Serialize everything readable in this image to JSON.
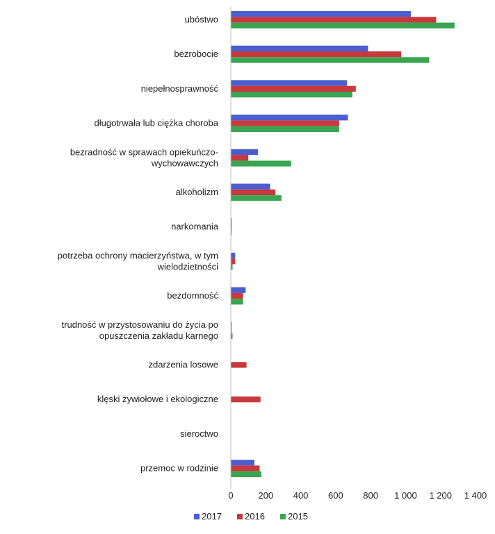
{
  "chart_data": {
    "type": "bar",
    "orientation": "horizontal",
    "categories": [
      "ubóstwo",
      "bezrobocie",
      "niepełnosprawność",
      "długotrwała lub ciężka choroba",
      "bezradność w sprawach opiekuńczo-wychowawczych",
      "alkoholizm",
      "narkomania",
      "potrzeba ochrony macierzyństwa, w tym wielodzietności",
      "bezdomność",
      "trudność w przystosowaniu do życia po opuszczenia zakładu karnego",
      "zdarzenia losowe",
      "klęski żywiołowe i ekologiczne",
      "sieroctwo",
      "przemoc w rodzinie"
    ],
    "category_lines": [
      [
        "ubóstwo"
      ],
      [
        "bezrobocie"
      ],
      [
        "niepełnosprawność"
      ],
      [
        "długotrwała lub ciężka choroba"
      ],
      [
        "bezradność w sprawach opiekuńczo-",
        "wychowawczych"
      ],
      [
        "alkoholizm"
      ],
      [
        "narkomania"
      ],
      [
        "potrzeba ochrony macierzyństwa, w tym",
        "wielodzietności"
      ],
      [
        "bezdomność"
      ],
      [
        "trudność w przystosowaniu do życia po",
        "opuszczenia zakładu karnego"
      ],
      [
        "zdarzenia losowe"
      ],
      [
        "klęski żywiołowe i ekologiczne"
      ],
      [
        "sieroctwo"
      ],
      [
        "przemoc w rodzinie"
      ]
    ],
    "series": [
      {
        "name": "2017",
        "color": "#4a5fcf",
        "values": [
          1030,
          785,
          665,
          670,
          155,
          225,
          5,
          25,
          85,
          5,
          0,
          0,
          0,
          135
        ]
      },
      {
        "name": "2016",
        "color": "#c8383c",
        "values": [
          1175,
          975,
          715,
          620,
          100,
          255,
          5,
          25,
          70,
          5,
          90,
          170,
          0,
          165
        ]
      },
      {
        "name": "2015",
        "color": "#3aa551",
        "values": [
          1280,
          1135,
          695,
          620,
          345,
          290,
          5,
          10,
          70,
          10,
          0,
          0,
          0,
          175
        ]
      }
    ],
    "xlim": [
      0,
      1400
    ],
    "x_ticks": [
      0,
      200,
      400,
      600,
      800,
      1000,
      1200,
      1400
    ],
    "x_tick_labels": [
      "0",
      "200",
      "400",
      "600",
      "800",
      "1 000",
      "1 200",
      "1 400"
    ],
    "title": "",
    "xlabel": "",
    "ylabel": "",
    "grid": false,
    "legend_position": "bottom"
  }
}
